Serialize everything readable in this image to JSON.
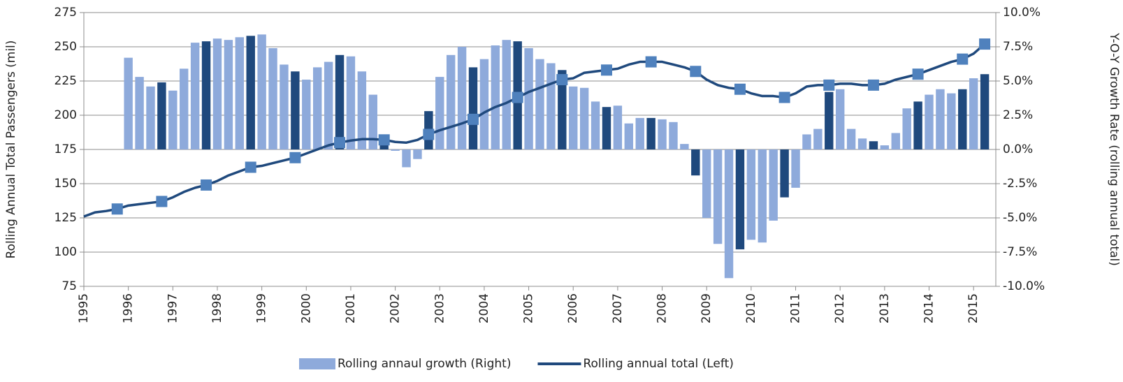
{
  "chart_data": {
    "type": "combo",
    "y_label": "Rolling Annual Total Passengers (mil)",
    "y2_label": "Y-O-Y Growth Rate (rolling annual total)",
    "categories": [
      "1995",
      null,
      null,
      null,
      "1996",
      null,
      null,
      null,
      "1997",
      null,
      null,
      null,
      "1998",
      null,
      null,
      null,
      "1999",
      null,
      null,
      null,
      "2000",
      null,
      null,
      null,
      "2001",
      null,
      null,
      null,
      "2002",
      null,
      null,
      null,
      "2003",
      null,
      null,
      null,
      "2004",
      null,
      null,
      null,
      "2005",
      null,
      null,
      null,
      "2006",
      null,
      null,
      null,
      "2007",
      null,
      null,
      null,
      "2008",
      null,
      null,
      null,
      "2009",
      null,
      null,
      null,
      "2010",
      null,
      null,
      null,
      "2011",
      null,
      null,
      null,
      "2012",
      null,
      null,
      null,
      "2013",
      null,
      null,
      null,
      "2014",
      null,
      null,
      null,
      "2015",
      null
    ],
    "series": [
      {
        "name": "Rolling annaul growth (Right)",
        "type": "bar",
        "axis": "y2",
        "color": "#8eaadb",
        "colors": [
          "#8eaadb",
          "#8eaadb",
          "#8eaadb",
          "#8eaadb",
          "#8eaadb",
          "#8eaadb",
          "#8eaadb",
          "#1f497d",
          "#8eaadb",
          "#8eaadb",
          "#8eaadb",
          "#1f497d",
          "#8eaadb",
          "#8eaadb",
          "#8eaadb",
          "#1f497d",
          "#8eaadb",
          "#8eaadb",
          "#8eaadb",
          "#1f497d",
          "#8eaadb",
          "#8eaadb",
          "#8eaadb",
          "#1f497d",
          "#8eaadb",
          "#8eaadb",
          "#8eaadb",
          "#1f497d",
          "#8eaadb",
          "#8eaadb",
          "#8eaadb",
          "#1f497d",
          "#8eaadb",
          "#8eaadb",
          "#8eaadb",
          "#1f497d",
          "#8eaadb",
          "#8eaadb",
          "#8eaadb",
          "#1f497d",
          "#8eaadb",
          "#8eaadb",
          "#8eaadb",
          "#1f497d",
          "#8eaadb",
          "#8eaadb",
          "#8eaadb",
          "#1f497d",
          "#8eaadb",
          "#8eaadb",
          "#8eaadb",
          "#1f497d",
          "#8eaadb",
          "#8eaadb",
          "#8eaadb",
          "#1f497d",
          "#8eaadb",
          "#8eaadb",
          "#8eaadb",
          "#1f497d",
          "#8eaadb",
          "#8eaadb",
          "#8eaadb",
          "#1f497d",
          "#8eaadb",
          "#8eaadb",
          "#8eaadb",
          "#1f497d",
          "#8eaadb",
          "#8eaadb",
          "#8eaadb",
          "#1f497d",
          "#8eaadb",
          "#8eaadb",
          "#8eaadb",
          "#1f497d",
          "#8eaadb",
          "#8eaadb",
          "#8eaadb",
          "#1f497d",
          "#8eaadb",
          "#1f497d"
        ],
        "values": [
          null,
          null,
          null,
          null,
          6.7,
          5.3,
          4.6,
          4.9,
          4.3,
          5.9,
          7.8,
          7.9,
          8.1,
          8.0,
          8.2,
          8.3,
          8.4,
          7.4,
          6.2,
          5.7,
          5.1,
          6.0,
          6.4,
          6.9,
          6.8,
          5.7,
          4.0,
          0.8,
          -0.1,
          -1.3,
          -0.7,
          2.8,
          5.3,
          6.9,
          7.5,
          6.0,
          6.6,
          7.6,
          8.0,
          7.9,
          7.4,
          6.6,
          6.3,
          5.8,
          4.6,
          4.5,
          3.5,
          3.1,
          3.2,
          1.9,
          2.3,
          2.3,
          2.2,
          2.0,
          0.4,
          -1.9,
          -5.0,
          -6.9,
          -9.4,
          -7.3,
          -6.6,
          -6.8,
          -5.2,
          -3.5,
          -2.8,
          1.1,
          1.5,
          4.2,
          4.4,
          1.5,
          0.8,
          0.6,
          0.3,
          1.2,
          3.0,
          3.5,
          4.0,
          4.4,
          4.1,
          4.4,
          5.2,
          5.5
        ]
      },
      {
        "name": "Rolling annual total (Left)",
        "type": "line",
        "axis": "y",
        "color": "#1f497d",
        "marker_color": "#4f81bd",
        "markers": [
          false,
          false,
          false,
          true,
          false,
          false,
          false,
          true,
          false,
          false,
          false,
          true,
          false,
          false,
          false,
          true,
          false,
          false,
          false,
          true,
          false,
          false,
          false,
          true,
          false,
          false,
          false,
          true,
          false,
          false,
          false,
          true,
          false,
          false,
          false,
          true,
          false,
          false,
          false,
          true,
          false,
          false,
          false,
          true,
          false,
          false,
          false,
          true,
          false,
          false,
          false,
          true,
          false,
          false,
          false,
          true,
          false,
          false,
          false,
          true,
          false,
          false,
          false,
          true,
          false,
          false,
          false,
          true,
          false,
          false,
          false,
          true,
          false,
          false,
          false,
          true,
          false,
          false,
          false,
          true,
          false,
          true
        ],
        "values": [
          126,
          129,
          130,
          131.5,
          134,
          135,
          136,
          137,
          140,
          144,
          147,
          149,
          152,
          156,
          159,
          162,
          163,
          165,
          167,
          169,
          172,
          175,
          178,
          180,
          181.5,
          182.5,
          182.5,
          182,
          180.5,
          180,
          182,
          186,
          189,
          191.5,
          194,
          197,
          202,
          206,
          209,
          213,
          217,
          220,
          223,
          226,
          227,
          231,
          232,
          233,
          234,
          237,
          239,
          239,
          239,
          237,
          235,
          232,
          226,
          222,
          220,
          219,
          216,
          214,
          214,
          213,
          216,
          221,
          222,
          222,
          223,
          223,
          222,
          222,
          223,
          226,
          228,
          230,
          233,
          236,
          239,
          241,
          245,
          252
        ]
      }
    ],
    "ylim": [
      75,
      275
    ],
    "yticks": [
      75,
      100,
      125,
      150,
      175,
      200,
      225,
      250,
      275
    ],
    "y2lim": [
      -10,
      10
    ],
    "y2ticks": [
      {
        "value": -10,
        "label": "-10.0%"
      },
      {
        "value": -7.5,
        "label": "-7.5%"
      },
      {
        "value": -5,
        "label": "-5.0%"
      },
      {
        "value": -2.5,
        "label": "-2.5%"
      },
      {
        "value": 0,
        "label": "0.0%"
      },
      {
        "value": 2.5,
        "label": "2.5%"
      },
      {
        "value": 5,
        "label": "5.0%"
      },
      {
        "value": 7.5,
        "label": "7.5%"
      },
      {
        "value": 10,
        "label": "10.0%"
      }
    ],
    "grid": true,
    "legend": "bottom"
  }
}
